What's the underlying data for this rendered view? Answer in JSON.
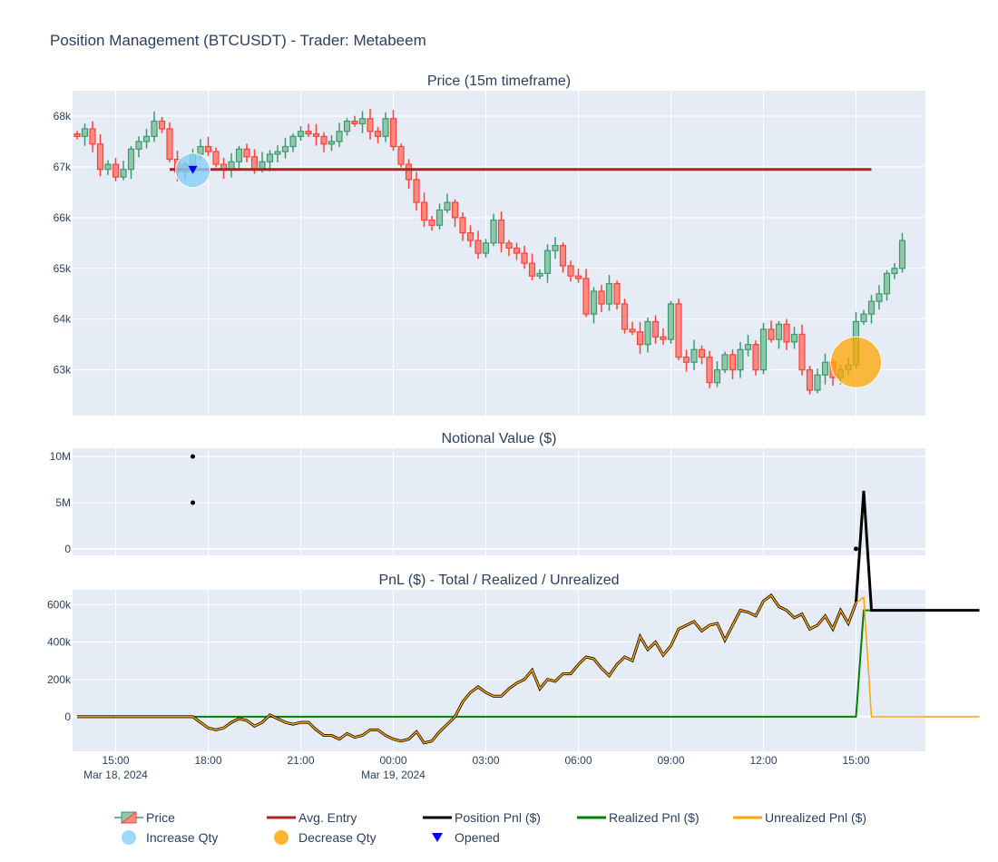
{
  "title": "Position Management (BTCUSDT) - Trader: Metabeem",
  "colors": {
    "increasing": "#3D9970",
    "decreasing": "#FF4136",
    "avg_entry": "#B22222",
    "increase_qty": "#87CEFA",
    "decrease_qty": "#FFA500",
    "opened": "#0000FF",
    "position_pnl": "#000000",
    "realized_pnl": "#008000",
    "unrealized_pnl": "#FFA500",
    "plot_bg": "#E5ECF6"
  },
  "chart_data": [
    {
      "type": "candlestick",
      "subtitle": "Price (15m timeframe)",
      "y_ticks": [
        {
          "value": 63000,
          "label": "63k"
        },
        {
          "value": 64000,
          "label": "64k"
        },
        {
          "value": 65000,
          "label": "65k"
        },
        {
          "value": 66000,
          "label": "66k"
        },
        {
          "value": 67000,
          "label": "67k"
        },
        {
          "value": 68000,
          "label": "68k"
        }
      ],
      "ylim": [
        62100,
        68500
      ],
      "candles_close": [
        67600,
        67750,
        67450,
        66950,
        67050,
        66800,
        66950,
        67350,
        67500,
        67600,
        67900,
        67750,
        67150,
        66900,
        67050,
        67250,
        67400,
        67300,
        67050,
        66950,
        67100,
        67350,
        67200,
        66950,
        67100,
        67250,
        67300,
        67400,
        67600,
        67700,
        67650,
        67600,
        67450,
        67500,
        67700,
        67900,
        67850,
        67950,
        67700,
        67600,
        67950,
        67400,
        67050,
        66750,
        66300,
        65950,
        65850,
        66150,
        66300,
        66000,
        65700,
        65550,
        65300,
        65500,
        65950,
        65500,
        65400,
        65300,
        65100,
        64850,
        64900,
        65350,
        65450,
        65050,
        64850,
        64800,
        64100,
        64550,
        64300,
        64700,
        64300,
        63800,
        63750,
        63500,
        63950,
        63650,
        63600,
        64300,
        63250,
        63150,
        63400,
        63250,
        62750,
        63000,
        63300,
        63000,
        63400,
        63500,
        63000,
        63800,
        63600,
        63900,
        63550,
        63700,
        63000,
        62600,
        62900,
        63150,
        62850,
        63000,
        63100,
        63950,
        64100,
        64350,
        64500,
        64900,
        65000,
        65550
      ],
      "avg_entry": {
        "value": 66950,
        "start_index": 12,
        "end_index": 103
      },
      "increase_qty_marker": {
        "index": 15,
        "price": 66930
      },
      "decrease_qty_marker": {
        "index": 101,
        "price": 63150
      },
      "opened_marker": {
        "index": 15,
        "price": 66950
      }
    },
    {
      "type": "scatter",
      "subtitle": "Notional Value ($)",
      "y_ticks": [
        {
          "value": 0,
          "label": "0"
        },
        {
          "value": 5000000,
          "label": "5M"
        },
        {
          "value": 10000000,
          "label": "10M"
        }
      ],
      "ylim": [
        -700000,
        10900000
      ],
      "points": [
        {
          "index": 15,
          "value": 10000000
        },
        {
          "index": 15,
          "value": 5000000
        },
        {
          "index": 101,
          "value": 0
        }
      ]
    },
    {
      "type": "line",
      "subtitle": "PnL ($) - Total / Realized / Unrealized",
      "y_ticks": [
        {
          "value": 0,
          "label": "0"
        },
        {
          "value": 200000,
          "label": "200k"
        },
        {
          "value": 400000,
          "label": "400k"
        },
        {
          "value": 600000,
          "label": "600k"
        }
      ],
      "ylim": [
        -185000,
        680000
      ],
      "x_ticks": [
        {
          "index": 5,
          "label": "15:00",
          "sublabel": "Mar 18, 2024"
        },
        {
          "index": 17,
          "label": "18:00",
          "sublabel": ""
        },
        {
          "index": 29,
          "label": "21:00",
          "sublabel": ""
        },
        {
          "index": 41,
          "label": "00:00",
          "sublabel": "Mar 19, 2024"
        },
        {
          "index": 53,
          "label": "03:00",
          "sublabel": ""
        },
        {
          "index": 65,
          "label": "06:00",
          "sublabel": ""
        },
        {
          "index": 77,
          "label": "09:00",
          "sublabel": ""
        },
        {
          "index": 89,
          "label": "12:00",
          "sublabel": ""
        },
        {
          "index": 101,
          "label": "15:00",
          "sublabel": ""
        }
      ],
      "unrealized": [
        0,
        0,
        0,
        0,
        0,
        0,
        0,
        0,
        0,
        0,
        0,
        0,
        0,
        0,
        0,
        0,
        -30000,
        -60000,
        -70000,
        -60000,
        -30000,
        -10000,
        -20000,
        -50000,
        -30000,
        10000,
        -10000,
        -30000,
        -40000,
        -30000,
        -30000,
        -70000,
        -100000,
        -100000,
        -120000,
        -90000,
        -110000,
        -100000,
        -70000,
        -70000,
        -100000,
        -120000,
        -130000,
        -120000,
        -80000,
        -140000,
        -130000,
        -80000,
        -40000,
        0,
        80000,
        130000,
        160000,
        130000,
        110000,
        110000,
        150000,
        180000,
        200000,
        250000,
        150000,
        200000,
        190000,
        230000,
        230000,
        280000,
        320000,
        310000,
        260000,
        220000,
        280000,
        320000,
        300000,
        430000,
        360000,
        400000,
        330000,
        380000,
        470000,
        490000,
        510000,
        460000,
        490000,
        500000,
        410000,
        490000,
        570000,
        560000,
        540000,
        620000,
        650000,
        590000,
        570000,
        530000,
        550000,
        470000,
        490000,
        540000,
        470000,
        570000,
        500000,
        610000,
        640000,
        0,
        0,
        0,
        0,
        0,
        0,
        0,
        0,
        0,
        0,
        0,
        0,
        0,
        0,
        0
      ],
      "realized_after": 570000,
      "exit_index": 102
    }
  ],
  "legend": [
    {
      "label": "Price",
      "kind": "candle"
    },
    {
      "label": "Avg. Entry",
      "kind": "line",
      "color": "#B22222"
    },
    {
      "label": "Position Pnl ($)",
      "kind": "line",
      "color": "#000000"
    },
    {
      "label": "Realized Pnl ($)",
      "kind": "line",
      "color": "#008000"
    },
    {
      "label": "Unrealized Pnl ($)",
      "kind": "line",
      "color": "#FFA500"
    },
    {
      "label": "Increase Qty",
      "kind": "circle",
      "color": "#87CEFA"
    },
    {
      "label": "Decrease Qty",
      "kind": "circle",
      "color": "#FFA500"
    },
    {
      "label": "Opened",
      "kind": "triangle",
      "color": "#0000FF"
    }
  ]
}
